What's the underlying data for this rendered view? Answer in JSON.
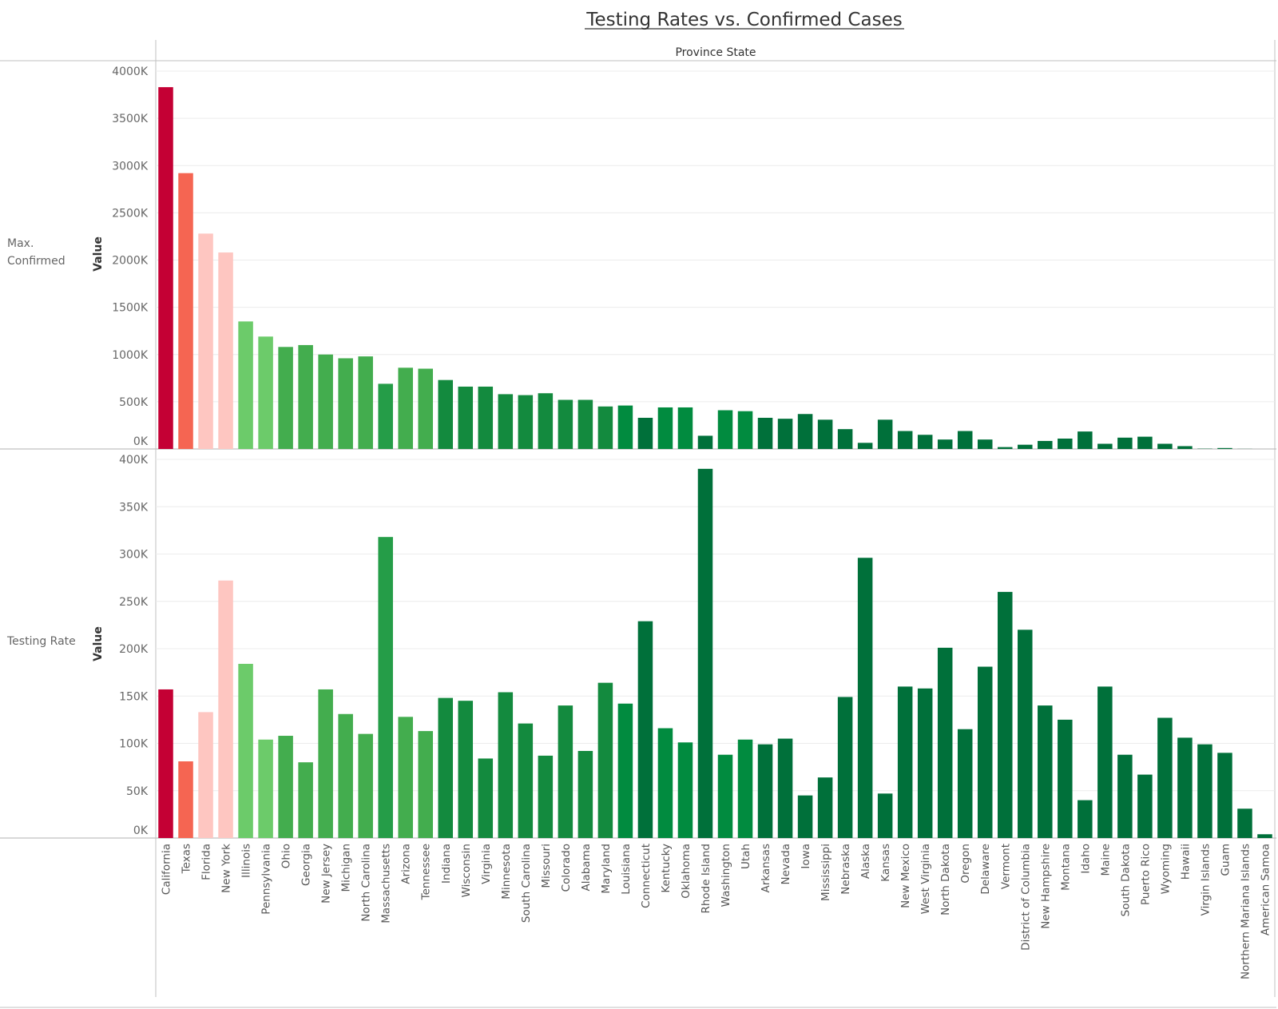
{
  "title": "Testing Rates vs. Confirmed Cases",
  "column_header": "Province State",
  "colors": {
    "red": "#c40034",
    "salmon": "#f56552",
    "pink": "#fec6c1",
    "light_green": "#6ccb6a",
    "green": "#43ad4e",
    "mid_green": "#259d48",
    "green2": "#138a3e",
    "green3": "#018b3f",
    "dark_green": "#00703a",
    "gridline": "#ececec",
    "axis": "#c0c0c0"
  },
  "chart_data": [
    {
      "type": "bar",
      "row_label": "Max. Confirmed",
      "ylabel": "Value",
      "ylim": [
        0,
        4000000
      ],
      "yticks": [
        "0K",
        "500K",
        "1000K",
        "1500K",
        "2000K",
        "2500K",
        "3000K",
        "3500K",
        "4000K"
      ],
      "categories": [
        "California",
        "Texas",
        "Florida",
        "New York",
        "Illinois",
        "Pennsylvania",
        "Ohio",
        "Georgia",
        "New Jersey",
        "Michigan",
        "North Carolina",
        "Massachusetts",
        "Arizona",
        "Tennessee",
        "Indiana",
        "Wisconsin",
        "Virginia",
        "Minnesota",
        "South Carolina",
        "Missouri",
        "Colorado",
        "Alabama",
        "Maryland",
        "Louisiana",
        "Connecticut",
        "Kentucky",
        "Oklahoma",
        "Rhode Island",
        "Washington",
        "Utah",
        "Arkansas",
        "Nevada",
        "Iowa",
        "Mississippi",
        "Nebraska",
        "Alaska",
        "Kansas",
        "New Mexico",
        "West Virginia",
        "North Dakota",
        "Oregon",
        "Delaware",
        "Vermont",
        "District of Columbia",
        "New Hampshire",
        "Montana",
        "Idaho",
        "Maine",
        "South Dakota",
        "Puerto Rico",
        "Wyoming",
        "Hawaii",
        "Virgin Islands",
        "Guam",
        "Northern Mariana Islands",
        "American Samoa"
      ],
      "values": [
        3830000,
        2920000,
        2280000,
        2080000,
        1350000,
        1190000,
        1080000,
        1100000,
        1000000,
        960000,
        980000,
        690000,
        860000,
        850000,
        730000,
        660000,
        660000,
        580000,
        570000,
        590000,
        520000,
        520000,
        450000,
        460000,
        330000,
        440000,
        440000,
        140000,
        410000,
        400000,
        330000,
        320000,
        370000,
        310000,
        210000,
        65000,
        310000,
        190000,
        150000,
        100000,
        190000,
        100000,
        20000,
        45000,
        85000,
        110000,
        185000,
        55000,
        120000,
        130000,
        55000,
        30000,
        3000,
        10000,
        1000,
        0
      ],
      "colors": [
        "red",
        "salmon",
        "pink",
        "pink",
        "light_green",
        "light_green",
        "green",
        "green",
        "green",
        "green",
        "green",
        "mid_green",
        "green",
        "green",
        "green2",
        "green2",
        "green2",
        "green2",
        "green2",
        "green2",
        "green2",
        "green2",
        "green2",
        "green3",
        "dark_green",
        "green3",
        "green3",
        "dark_green",
        "green3",
        "green3",
        "dark_green",
        "dark_green",
        "dark_green",
        "dark_green",
        "dark_green",
        "dark_green",
        "dark_green",
        "dark_green",
        "dark_green",
        "dark_green",
        "dark_green",
        "dark_green",
        "dark_green",
        "dark_green",
        "dark_green",
        "dark_green",
        "dark_green",
        "dark_green",
        "dark_green",
        "dark_green",
        "dark_green",
        "dark_green",
        "dark_green",
        "dark_green",
        "dark_green",
        "dark_green"
      ]
    },
    {
      "type": "bar",
      "row_label": "Testing Rate",
      "ylabel": "Value",
      "ylim": [
        0,
        400000
      ],
      "yticks": [
        "0K",
        "50K",
        "100K",
        "150K",
        "200K",
        "250K",
        "300K",
        "350K",
        "400K"
      ],
      "categories": [
        "California",
        "Texas",
        "Florida",
        "New York",
        "Illinois",
        "Pennsylvania",
        "Ohio",
        "Georgia",
        "New Jersey",
        "Michigan",
        "North Carolina",
        "Massachusetts",
        "Arizona",
        "Tennessee",
        "Indiana",
        "Wisconsin",
        "Virginia",
        "Minnesota",
        "South Carolina",
        "Missouri",
        "Colorado",
        "Alabama",
        "Maryland",
        "Louisiana",
        "Connecticut",
        "Kentucky",
        "Oklahoma",
        "Rhode Island",
        "Washington",
        "Utah",
        "Arkansas",
        "Nevada",
        "Iowa",
        "Mississippi",
        "Nebraska",
        "Alaska",
        "Kansas",
        "New Mexico",
        "West Virginia",
        "North Dakota",
        "Oregon",
        "Delaware",
        "Vermont",
        "District of Columbia",
        "New Hampshire",
        "Montana",
        "Idaho",
        "Maine",
        "South Dakota",
        "Puerto Rico",
        "Wyoming",
        "Hawaii",
        "Virgin Islands",
        "Guam",
        "Northern Mariana Islands",
        "American Samoa"
      ],
      "values": [
        157000,
        81000,
        133000,
        272000,
        184000,
        104000,
        108000,
        80000,
        157000,
        131000,
        110000,
        318000,
        128000,
        113000,
        148000,
        145000,
        84000,
        154000,
        121000,
        87000,
        140000,
        92000,
        164000,
        142000,
        229000,
        116000,
        101000,
        390000,
        88000,
        104000,
        99000,
        105000,
        45000,
        64000,
        149000,
        296000,
        47000,
        160000,
        158000,
        201000,
        115000,
        181000,
        260000,
        220000,
        140000,
        125000,
        40000,
        160000,
        88000,
        67000,
        127000,
        106000,
        99000,
        90000,
        31000,
        4000
      ],
      "colors": [
        "red",
        "salmon",
        "pink",
        "pink",
        "light_green",
        "light_green",
        "green",
        "green",
        "green",
        "green",
        "green",
        "mid_green",
        "green",
        "green",
        "green2",
        "green2",
        "green2",
        "green2",
        "green2",
        "green2",
        "green2",
        "green2",
        "green2",
        "green3",
        "dark_green",
        "green3",
        "green3",
        "dark_green",
        "green3",
        "green3",
        "dark_green",
        "dark_green",
        "dark_green",
        "dark_green",
        "dark_green",
        "dark_green",
        "dark_green",
        "dark_green",
        "dark_green",
        "dark_green",
        "dark_green",
        "dark_green",
        "dark_green",
        "dark_green",
        "dark_green",
        "dark_green",
        "dark_green",
        "dark_green",
        "dark_green",
        "dark_green",
        "dark_green",
        "dark_green",
        "dark_green",
        "dark_green",
        "dark_green",
        "dark_green"
      ]
    }
  ]
}
